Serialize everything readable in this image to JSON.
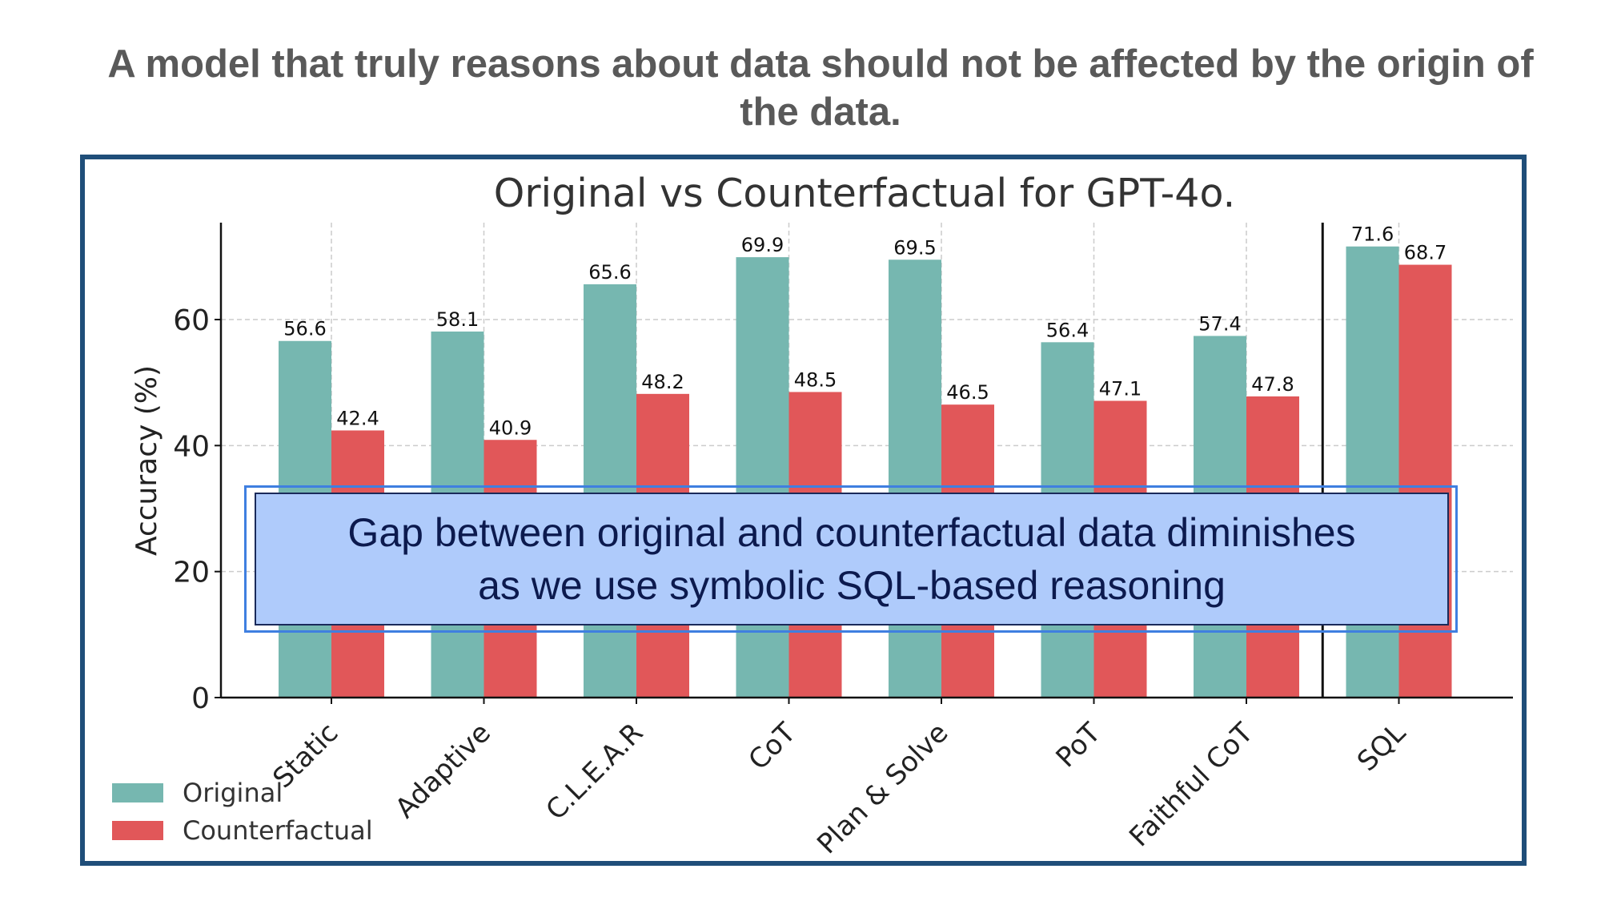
{
  "slide": {
    "heading": "A model that truly reasons about data should not be affected by the origin of the data."
  },
  "callout": {
    "text": "Gap between original and counterfactual data diminishes\nas we use symbolic SQL-based reasoning"
  },
  "colors": {
    "original": "#76b7b0",
    "counterfactual": "#e15759",
    "frame": "#1f4e79",
    "callout_fill": "#afcbfb",
    "callout_border": "#3f7fe0",
    "heading": "#595959"
  },
  "chart_data": {
    "type": "bar",
    "title": "Original vs Counterfactual for GPT-4o.",
    "xlabel": "",
    "ylabel": "Accuracy (%)",
    "ylim": [
      0,
      75
    ],
    "yticks": [
      0,
      20,
      40,
      60
    ],
    "grid": true,
    "legend_position": "bottom-left",
    "categories": [
      "Static",
      "Adaptive",
      "C.L.E.A.R",
      "CoT",
      "Plan & Solve",
      "PoT",
      "Faithful CoT",
      "SQL"
    ],
    "series": [
      {
        "name": "Original",
        "values": [
          56.6,
          58.1,
          65.6,
          69.9,
          69.5,
          56.4,
          57.4,
          71.6
        ]
      },
      {
        "name": "Counterfactual",
        "values": [
          42.4,
          40.9,
          48.2,
          48.5,
          46.5,
          47.1,
          47.8,
          68.7
        ]
      }
    ],
    "separator_before": "SQL"
  }
}
